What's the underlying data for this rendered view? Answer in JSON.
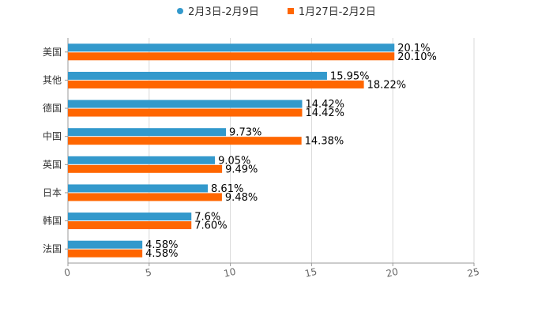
{
  "chart_data": {
    "type": "bar",
    "orientation": "horizontal",
    "categories": [
      "美国",
      "其他",
      "德国",
      "中国",
      "英国",
      "日本",
      "韩国",
      "法国"
    ],
    "series": [
      {
        "name": "2月3日-2月9日",
        "color": "#3399cc",
        "marker": "circle",
        "values": [
          20.1,
          15.95,
          14.42,
          9.73,
          9.05,
          8.61,
          7.6,
          4.58
        ],
        "labels": [
          "20.1%",
          "15.95%",
          "14.42%",
          "9.73%",
          "9.05%",
          "8.61%",
          "7.6%",
          "4.58%"
        ]
      },
      {
        "name": "1月27日-2月2日",
        "color": "#ff6600",
        "marker": "square",
        "values": [
          20.1,
          18.22,
          14.42,
          14.38,
          9.49,
          9.48,
          7.6,
          4.58
        ],
        "labels": [
          "20.10%",
          "18.22%",
          "14.42%",
          "14.38%",
          "9.49%",
          "9.48%",
          "7.60%",
          "4.58%"
        ]
      }
    ],
    "xlim": [
      0,
      25
    ],
    "xticks": [
      0,
      5,
      10,
      15,
      20,
      25
    ],
    "xtick_labels": [
      "0",
      "5",
      "10",
      "15",
      "20",
      "25"
    ],
    "grid": true,
    "legend_position": "top-center"
  }
}
